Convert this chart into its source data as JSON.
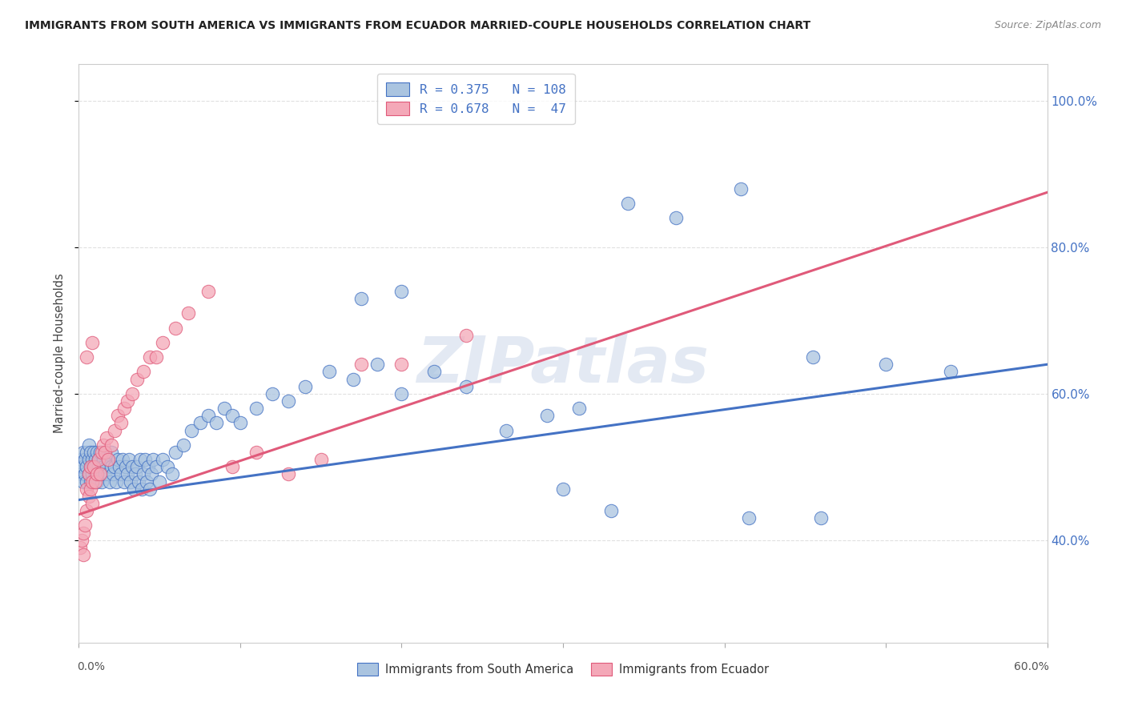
{
  "title": "IMMIGRANTS FROM SOUTH AMERICA VS IMMIGRANTS FROM ECUADOR MARRIED-COUPLE HOUSEHOLDS CORRELATION CHART",
  "source": "Source: ZipAtlas.com",
  "ylabel": "Married-couple Households",
  "ytick_labels": [
    "40.0%",
    "60.0%",
    "80.0%",
    "100.0%"
  ],
  "ytick_values": [
    0.4,
    0.6,
    0.8,
    1.0
  ],
  "xlim": [
    0.0,
    0.6
  ],
  "ylim": [
    0.26,
    1.05
  ],
  "legend_label_blue": "R = 0.375   N = 108",
  "legend_label_pink": "R = 0.678   N =  47",
  "legend_label_bottom_blue": "Immigrants from South America",
  "legend_label_bottom_pink": "Immigrants from Ecuador",
  "blue_color": "#aac4e0",
  "pink_color": "#f4a8b8",
  "blue_line_color": "#4472c4",
  "pink_line_color": "#e05a7a",
  "watermark": "ZIPatlas",
  "blue_line_x": [
    0.0,
    0.6
  ],
  "blue_line_y": [
    0.455,
    0.64
  ],
  "pink_line_x": [
    0.0,
    0.6
  ],
  "pink_line_y": [
    0.435,
    0.875
  ],
  "grid_color": "#e0e0e0",
  "background_color": "#ffffff",
  "blue_scatter_x": [
    0.001,
    0.002,
    0.002,
    0.003,
    0.003,
    0.003,
    0.004,
    0.004,
    0.005,
    0.005,
    0.005,
    0.006,
    0.006,
    0.006,
    0.007,
    0.007,
    0.007,
    0.008,
    0.008,
    0.008,
    0.009,
    0.009,
    0.01,
    0.01,
    0.01,
    0.011,
    0.011,
    0.012,
    0.012,
    0.013,
    0.013,
    0.014,
    0.014,
    0.015,
    0.015,
    0.016,
    0.016,
    0.017,
    0.018,
    0.018,
    0.019,
    0.02,
    0.02,
    0.021,
    0.022,
    0.023,
    0.024,
    0.025,
    0.026,
    0.027,
    0.028,
    0.029,
    0.03,
    0.031,
    0.032,
    0.033,
    0.034,
    0.035,
    0.036,
    0.037,
    0.038,
    0.039,
    0.04,
    0.041,
    0.042,
    0.043,
    0.044,
    0.045,
    0.046,
    0.048,
    0.05,
    0.052,
    0.055,
    0.058,
    0.06,
    0.065,
    0.07,
    0.075,
    0.08,
    0.085,
    0.09,
    0.095,
    0.1,
    0.11,
    0.12,
    0.13,
    0.14,
    0.155,
    0.17,
    0.185,
    0.2,
    0.22,
    0.24,
    0.265,
    0.29,
    0.31,
    0.34,
    0.37,
    0.41,
    0.455,
    0.3,
    0.33,
    0.415,
    0.46,
    0.5,
    0.54,
    0.175,
    0.2
  ],
  "blue_scatter_y": [
    0.5,
    0.51,
    0.49,
    0.5,
    0.52,
    0.48,
    0.51,
    0.49,
    0.5,
    0.52,
    0.48,
    0.51,
    0.49,
    0.53,
    0.5,
    0.48,
    0.52,
    0.51,
    0.49,
    0.5,
    0.52,
    0.48,
    0.51,
    0.5,
    0.49,
    0.52,
    0.48,
    0.51,
    0.5,
    0.49,
    0.52,
    0.5,
    0.48,
    0.51,
    0.5,
    0.49,
    0.52,
    0.5,
    0.49,
    0.51,
    0.48,
    0.5,
    0.52,
    0.49,
    0.5,
    0.48,
    0.51,
    0.5,
    0.49,
    0.51,
    0.48,
    0.5,
    0.49,
    0.51,
    0.48,
    0.5,
    0.47,
    0.49,
    0.5,
    0.48,
    0.51,
    0.47,
    0.49,
    0.51,
    0.48,
    0.5,
    0.47,
    0.49,
    0.51,
    0.5,
    0.48,
    0.51,
    0.5,
    0.49,
    0.52,
    0.53,
    0.55,
    0.56,
    0.57,
    0.56,
    0.58,
    0.57,
    0.56,
    0.58,
    0.6,
    0.59,
    0.61,
    0.63,
    0.62,
    0.64,
    0.6,
    0.63,
    0.61,
    0.55,
    0.57,
    0.58,
    0.86,
    0.84,
    0.88,
    0.65,
    0.47,
    0.44,
    0.43,
    0.43,
    0.64,
    0.63,
    0.73,
    0.74
  ],
  "pink_scatter_x": [
    0.001,
    0.002,
    0.003,
    0.003,
    0.004,
    0.005,
    0.005,
    0.006,
    0.006,
    0.007,
    0.007,
    0.008,
    0.008,
    0.009,
    0.01,
    0.011,
    0.012,
    0.013,
    0.014,
    0.015,
    0.016,
    0.017,
    0.018,
    0.02,
    0.022,
    0.024,
    0.026,
    0.028,
    0.03,
    0.033,
    0.036,
    0.04,
    0.044,
    0.048,
    0.052,
    0.06,
    0.068,
    0.08,
    0.095,
    0.11,
    0.13,
    0.15,
    0.175,
    0.2,
    0.24,
    0.005,
    0.008
  ],
  "pink_scatter_y": [
    0.39,
    0.4,
    0.41,
    0.38,
    0.42,
    0.47,
    0.44,
    0.49,
    0.46,
    0.5,
    0.47,
    0.48,
    0.45,
    0.5,
    0.48,
    0.49,
    0.51,
    0.49,
    0.52,
    0.53,
    0.52,
    0.54,
    0.51,
    0.53,
    0.55,
    0.57,
    0.56,
    0.58,
    0.59,
    0.6,
    0.62,
    0.63,
    0.65,
    0.65,
    0.67,
    0.69,
    0.71,
    0.74,
    0.5,
    0.52,
    0.49,
    0.51,
    0.64,
    0.64,
    0.68,
    0.65,
    0.67
  ]
}
